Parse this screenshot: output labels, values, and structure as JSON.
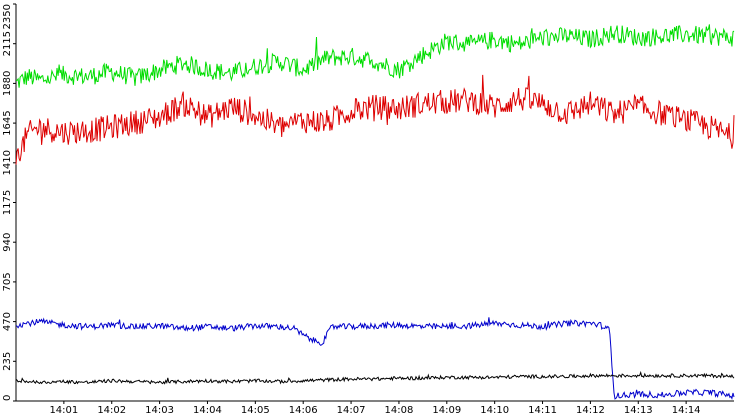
{
  "chart_data": {
    "type": "line",
    "title": "",
    "xlabel": "",
    "ylabel": "",
    "ylim": [
      0,
      2350
    ],
    "yticks": [
      0,
      235,
      470,
      705,
      940,
      1175,
      1410,
      1645,
      1880,
      2115,
      2350
    ],
    "xlim": [
      0,
      15
    ],
    "xticks": [
      {
        "pos": 1,
        "label": "14:01"
      },
      {
        "pos": 2,
        "label": "14:02"
      },
      {
        "pos": 3,
        "label": "14:03"
      },
      {
        "pos": 4,
        "label": "14:04"
      },
      {
        "pos": 5,
        "label": "14:05"
      },
      {
        "pos": 6,
        "label": "14:06"
      },
      {
        "pos": 7,
        "label": "14:07"
      },
      {
        "pos": 8,
        "label": "14:08"
      },
      {
        "pos": 9,
        "label": "14:09"
      },
      {
        "pos": 10,
        "label": "14:10"
      },
      {
        "pos": 11,
        "label": "14:11"
      },
      {
        "pos": 12,
        "label": "14:12"
      },
      {
        "pos": 13,
        "label": "14:13"
      },
      {
        "pos": 14,
        "label": "14:14"
      }
    ],
    "grid": false,
    "legend": "none",
    "series": [
      {
        "color": "#00dd00",
        "x": [
          0,
          0.25,
          0.5,
          1,
          1.5,
          2,
          2.5,
          3,
          3.5,
          4,
          4.5,
          5,
          5.5,
          6,
          6.5,
          7,
          7.5,
          8,
          8.5,
          9,
          9.5,
          10,
          10.5,
          11,
          11.5,
          12,
          12.5,
          13,
          13.5,
          14,
          14.5,
          15
        ],
        "values": [
          1880,
          1920,
          1900,
          1930,
          1920,
          1950,
          1910,
          1960,
          2000,
          1960,
          1940,
          1980,
          2010,
          1960,
          2030,
          2040,
          2010,
          1960,
          2050,
          2130,
          2110,
          2140,
          2110,
          2150,
          2160,
          2140,
          2180,
          2150,
          2160,
          2170,
          2160,
          2150
        ]
      },
      {
        "color": "#dd0000",
        "x": [
          0,
          0.25,
          0.5,
          1,
          1.5,
          2,
          2.5,
          3,
          3.5,
          4,
          4.5,
          5,
          5.5,
          6,
          6.5,
          7,
          7.5,
          8,
          8.5,
          9,
          9.5,
          10,
          10.5,
          11,
          11.5,
          12,
          12.5,
          13,
          13.5,
          14,
          14.5,
          15
        ],
        "values": [
          1430,
          1580,
          1620,
          1590,
          1600,
          1620,
          1650,
          1680,
          1760,
          1680,
          1740,
          1690,
          1620,
          1660,
          1650,
          1720,
          1740,
          1730,
          1760,
          1770,
          1780,
          1740,
          1790,
          1760,
          1700,
          1760,
          1700,
          1740,
          1700,
          1660,
          1620,
          1560
        ]
      },
      {
        "color": "#0000cc",
        "x": [
          0,
          0.5,
          1,
          1.5,
          2,
          2.5,
          3,
          3.5,
          4,
          4.5,
          5,
          5.5,
          5.8,
          6,
          6.2,
          6.4,
          6.6,
          7,
          7.5,
          8,
          8.5,
          9,
          9.5,
          10,
          10.5,
          11,
          11.5,
          12,
          12.2,
          12.4,
          12.5,
          13,
          13.5,
          14,
          14.5,
          15
        ],
        "values": [
          450,
          470,
          450,
          440,
          450,
          440,
          445,
          430,
          440,
          430,
          445,
          440,
          430,
          390,
          360,
          345,
          440,
          440,
          445,
          450,
          440,
          440,
          445,
          460,
          450,
          440,
          460,
          460,
          450,
          420,
          30,
          40,
          35,
          50,
          50,
          30
        ]
      },
      {
        "color": "#000000",
        "x": [
          0,
          0.5,
          1,
          1.5,
          2,
          2.5,
          3,
          3.5,
          4,
          4.5,
          5,
          5.5,
          6,
          6.5,
          7,
          7.5,
          8,
          8.5,
          9,
          9.5,
          10,
          10.5,
          11,
          11.5,
          12,
          12.5,
          13,
          13.5,
          14,
          14.5,
          15
        ],
        "values": [
          120,
          110,
          115,
          110,
          120,
          115,
          110,
          115,
          120,
          115,
          120,
          115,
          120,
          125,
          130,
          130,
          135,
          135,
          140,
          140,
          140,
          145,
          145,
          145,
          150,
          150,
          150,
          150,
          150,
          150,
          145
        ]
      }
    ]
  }
}
